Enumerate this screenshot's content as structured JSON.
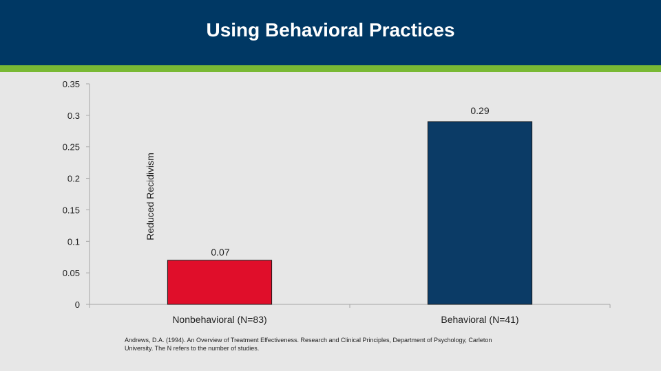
{
  "slide": {
    "title": "Using Behavioral Practices",
    "footnote": "Andrews, D.A. (1994). An Overview of Treatment Effectiveness. Research and Clinical Principles, Department of Psychology, Carleton University. The N refers to the number of studies."
  },
  "colors": {
    "header": "#003864",
    "stripe": "#79b934",
    "background": "#e7e7e7"
  },
  "chart_data": {
    "type": "bar",
    "title": "",
    "xlabel": "",
    "ylabel": "Reduced Recidivism",
    "categories": [
      "Nonbehavioral (N=83)",
      "Behavioral (N=41)"
    ],
    "values": [
      0.07,
      0.29
    ],
    "data_labels": [
      "0.07",
      "0.29"
    ],
    "colors": [
      "#e00e2a",
      "#0b3b66"
    ],
    "ylim": [
      0,
      0.35
    ],
    "yticks": [
      0,
      0.05,
      0.1,
      0.15,
      0.2,
      0.25,
      0.3,
      0.35
    ],
    "ytick_labels": [
      "0",
      "0.05",
      "0.1",
      "0.15",
      "0.2",
      "0.25",
      "0.3",
      "0.35"
    ],
    "grid": false
  }
}
